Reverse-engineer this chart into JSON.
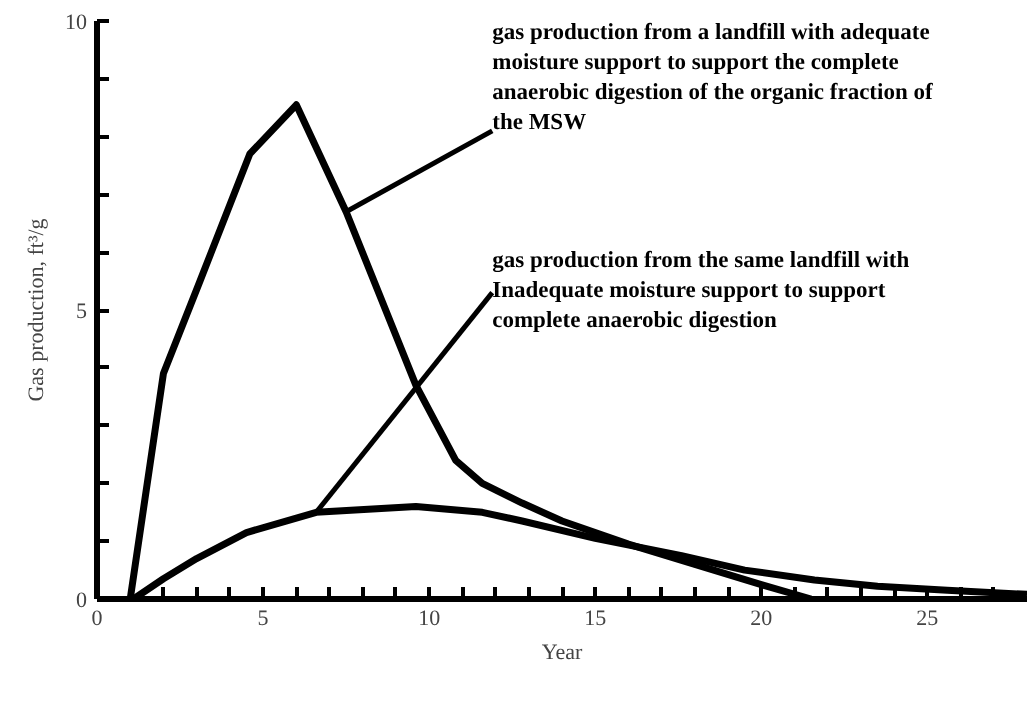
{
  "chart_data": {
    "type": "line",
    "xlabel": "Year",
    "ylabel": "Gas production, ft³/g",
    "series": [
      {
        "color": "#000000",
        "x": [
          1,
          2,
          3.1,
          4.6,
          6.0,
          7.5,
          9.6,
          10.8,
          11.6,
          12.8,
          14,
          16,
          18,
          20,
          21.5
        ],
        "values": [
          0,
          3.9,
          5.5,
          7.7,
          8.55,
          6.7,
          3.7,
          2.4,
          2.0,
          1.66,
          1.35,
          0.95,
          0.6,
          0.25,
          0
        ]
      },
      {
        "color": "#000000",
        "x": [
          1.1,
          2,
          3,
          4.5,
          6.6,
          9.6,
          11.6,
          12.8,
          15,
          17.6,
          19.5,
          21.6,
          23.5,
          25.6,
          28
        ],
        "values": [
          0,
          0.35,
          0.7,
          1.15,
          1.5,
          1.6,
          1.5,
          1.35,
          1.05,
          0.75,
          0.5,
          0.33,
          0.22,
          0.15,
          0.08
        ]
      }
    ],
    "annotations": [
      {
        "text": "gas production from a landfill with adequate\n moisture support to support the complete\nanaerobic digestion of the organic fraction of\n the MSW",
        "x": 7.5,
        "y": 6.7
      },
      {
        "text": "gas production from the same landfill with\nInadequate moisture support to support\ncomplete anaerobic digestion",
        "x": 6.6,
        "y": 1.5
      }
    ],
    "xlim": [
      0,
      28
    ],
    "ylim": [
      0,
      10
    ],
    "xticks": [
      0,
      {
        "value": 1,
        "label": null
      },
      {
        "value": 2,
        "label": null
      },
      {
        "value": 3,
        "label": null
      },
      {
        "value": 4,
        "label": null
      },
      5,
      {
        "value": 6,
        "label": null
      },
      {
        "value": 7,
        "label": null
      },
      {
        "value": 8,
        "label": null
      },
      {
        "value": 9,
        "label": null
      },
      10,
      {
        "value": 11,
        "label": null
      },
      {
        "value": 12,
        "label": null
      },
      {
        "value": 13,
        "label": null
      },
      {
        "value": 14,
        "label": null
      },
      15,
      {
        "value": 16,
        "label": null
      },
      {
        "value": 17,
        "label": null
      },
      {
        "value": 18,
        "label": null
      },
      {
        "value": 19,
        "label": null
      },
      20,
      {
        "value": 21,
        "label": null
      },
      {
        "value": 22,
        "label": null
      },
      {
        "value": 23,
        "label": null
      },
      {
        "value": 24,
        "label": null
      },
      25,
      {
        "value": 26,
        "label": null
      },
      {
        "value": 27,
        "label": null
      }
    ],
    "yticks": [
      0,
      {
        "value": 1,
        "label": null
      },
      {
        "value": 2,
        "label": null
      },
      {
        "value": 3,
        "label": null
      },
      {
        "value": 4,
        "label": null
      },
      5,
      {
        "value": 6,
        "label": null
      },
      {
        "value": 7,
        "label": null
      },
      {
        "value": 8,
        "label": null
      },
      {
        "value": 9,
        "label": null
      },
      10
    ],
    "grid": false,
    "marker": "none",
    "line_style": "solid"
  }
}
